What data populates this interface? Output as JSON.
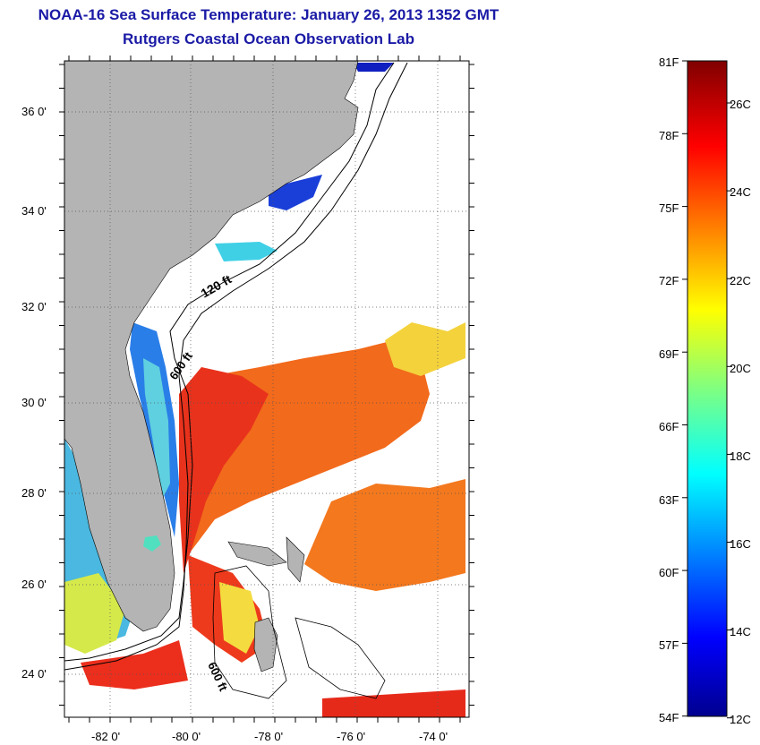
{
  "header": {
    "title": "NOAA-16 Sea Surface Temperature:  January 26, 2013 1352 GMT",
    "subtitle": "Rutgers Coastal Ocean Observation Lab"
  },
  "map": {
    "lat_labels": [
      "36 0'",
      "34 0'",
      "32 0'",
      "30 0'",
      "28 0'",
      "26 0'",
      "24 0'"
    ],
    "lon_labels": [
      "-82 0'",
      "-80 0'",
      "-78 0'",
      "-76 0'",
      "-74 0'"
    ],
    "contour_labels": [
      "120 ft",
      "600 ft",
      "600 ft"
    ],
    "colors": {
      "land": "#b4b4b4",
      "no_data": "#ffffff"
    }
  },
  "colorbar": {
    "f_labels": [
      "81F",
      "78F",
      "75F",
      "72F",
      "69F",
      "66F",
      "63F",
      "60F",
      "57F",
      "54F"
    ],
    "c_labels": [
      "26C",
      "24C",
      "22C",
      "20C",
      "18C",
      "16C",
      "14C",
      "12C"
    ],
    "colormap": "jet"
  }
}
